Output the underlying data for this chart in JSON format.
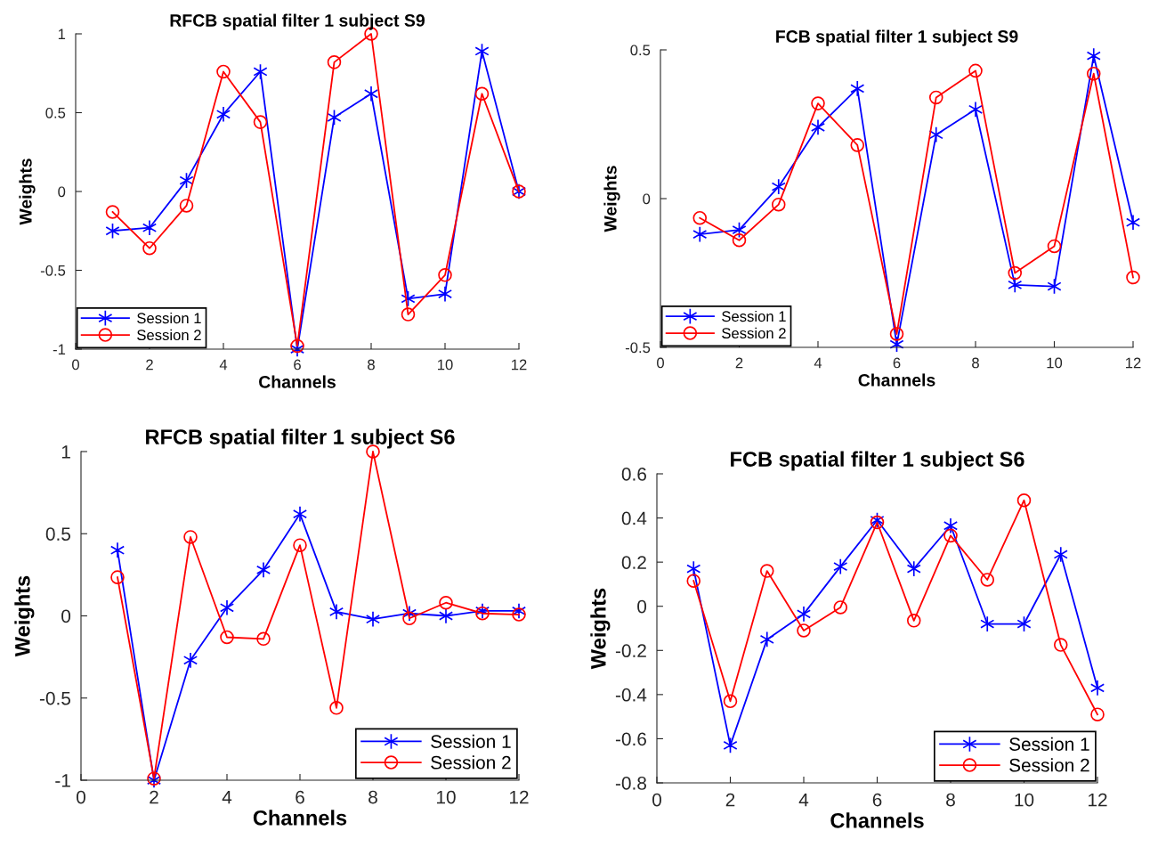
{
  "chart_data": [
    {
      "type": "line",
      "title": "RFCB spatial filter 1 subject S9",
      "xlabel": "Channels",
      "ylabel": "Weights",
      "x": [
        1,
        2,
        3,
        4,
        5,
        6,
        7,
        8,
        9,
        10,
        11,
        12
      ],
      "xlim": [
        0,
        12
      ],
      "xticks": [
        0,
        2,
        4,
        6,
        8,
        10,
        12
      ],
      "ylim": [
        -1,
        1
      ],
      "yticks": [
        -1,
        -0.5,
        0,
        0.5,
        1
      ],
      "legend": "bottom left",
      "grid": false,
      "series": [
        {
          "name": "Session 1",
          "color": "#0000ff",
          "marker": "cross",
          "values": [
            -0.25,
            -0.23,
            0.07,
            0.49,
            0.76,
            -1.0,
            0.47,
            0.62,
            -0.68,
            -0.65,
            0.89,
            0.0
          ]
        },
        {
          "name": "Session 2",
          "color": "#ff0000",
          "marker": "circle",
          "values": [
            -0.13,
            -0.36,
            -0.09,
            0.76,
            0.44,
            -0.98,
            0.82,
            1.0,
            -0.78,
            -0.53,
            0.62,
            0.0
          ]
        }
      ]
    },
    {
      "type": "line",
      "title": "FCB spatial filter 1 subject S9",
      "xlabel": "Channels",
      "ylabel": "Weights",
      "x": [
        1,
        2,
        3,
        4,
        5,
        6,
        7,
        8,
        9,
        10,
        11,
        12
      ],
      "xlim": [
        0,
        12
      ],
      "xticks": [
        0,
        2,
        4,
        6,
        8,
        10,
        12
      ],
      "ylim": [
        -0.5,
        0.5
      ],
      "yticks": [
        -0.5,
        0,
        0.5
      ],
      "legend": "bottom left",
      "grid": false,
      "series": [
        {
          "name": "Session 1",
          "color": "#0000ff",
          "marker": "cross",
          "values": [
            -0.12,
            -0.105,
            0.04,
            0.24,
            0.37,
            -0.49,
            0.215,
            0.3,
            -0.29,
            -0.295,
            0.48,
            -0.08
          ]
        },
        {
          "name": "Session 2",
          "color": "#ff0000",
          "marker": "circle",
          "values": [
            -0.065,
            -0.14,
            -0.02,
            0.32,
            0.18,
            -0.455,
            0.34,
            0.43,
            -0.25,
            -0.16,
            0.42,
            -0.265
          ]
        }
      ]
    },
    {
      "type": "line",
      "title": "RFCB spatial filter 1 subject S6",
      "xlabel": "Channels",
      "ylabel": "Weights",
      "x": [
        1,
        2,
        3,
        4,
        5,
        6,
        7,
        8,
        9,
        10,
        11,
        12
      ],
      "xlim": [
        0,
        12
      ],
      "xticks": [
        0,
        2,
        4,
        6,
        8,
        10,
        12
      ],
      "ylim": [
        -1,
        1
      ],
      "yticks": [
        -1,
        -0.5,
        0,
        0.5,
        1
      ],
      "legend": "bottom right",
      "grid": false,
      "series": [
        {
          "name": "Session 1",
          "color": "#0000ff",
          "marker": "cross",
          "values": [
            0.4,
            -1.0,
            -0.27,
            0.05,
            0.28,
            0.62,
            0.025,
            -0.02,
            0.015,
            0.0,
            0.03,
            0.03
          ]
        },
        {
          "name": "Session 2",
          "color": "#ff0000",
          "marker": "circle",
          "values": [
            0.235,
            -0.99,
            0.48,
            -0.13,
            -0.14,
            0.43,
            -0.56,
            1.0,
            -0.015,
            0.08,
            0.015,
            0.008
          ]
        }
      ]
    },
    {
      "type": "line",
      "title": "FCB spatial filter 1 subject S6",
      "xlabel": "Channels",
      "ylabel": "Weights",
      "x": [
        1,
        2,
        3,
        4,
        5,
        6,
        7,
        8,
        9,
        10,
        11,
        12
      ],
      "xlim": [
        0,
        12
      ],
      "xticks": [
        0,
        2,
        4,
        6,
        8,
        10,
        12
      ],
      "ylim": [
        -0.8,
        0.6
      ],
      "yticks": [
        -0.8,
        -0.6,
        -0.4,
        -0.2,
        0,
        0.2,
        0.4,
        0.6
      ],
      "legend": "bottom right",
      "grid": false,
      "series": [
        {
          "name": "Session 1",
          "color": "#0000ff",
          "marker": "cross",
          "values": [
            0.17,
            -0.63,
            -0.15,
            -0.035,
            0.18,
            0.39,
            0.17,
            0.365,
            -0.08,
            -0.08,
            0.235,
            -0.37
          ]
        },
        {
          "name": "Session 2",
          "color": "#ff0000",
          "marker": "circle",
          "values": [
            0.115,
            -0.43,
            0.16,
            -0.11,
            -0.005,
            0.38,
            -0.065,
            0.32,
            0.12,
            0.48,
            -0.175,
            -0.49
          ]
        }
      ]
    }
  ]
}
